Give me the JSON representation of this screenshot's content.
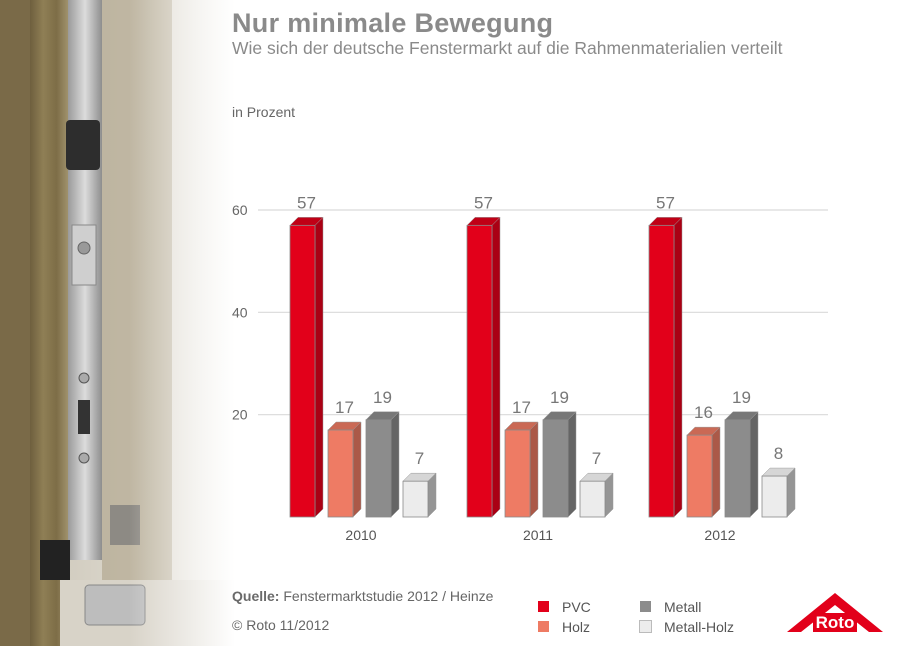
{
  "header": {
    "title": "Nur minimale Bewegung",
    "subtitle": "Wie sich der deutsche Fenstermarkt auf die Rahmenmaterialien verteilt"
  },
  "footer": {
    "source_label": "Quelle:",
    "source_text": "Fenstermarktstudie 2012 / Heinze",
    "copyright": "© Roto 11/2012"
  },
  "logo": {
    "text": "Roto",
    "color": "#e2001a"
  },
  "chart_data": {
    "type": "bar",
    "title": "Nur minimale Bewegung",
    "subtitle": "Wie sich der deutsche Fenstermarkt auf die Rahmenmaterialien verteilt",
    "unit_label": "in Prozent",
    "categories": [
      "2010",
      "2011",
      "2012"
    ],
    "series": [
      {
        "name": "PVC",
        "values": [
          57,
          57,
          57
        ],
        "color": "#e2001a"
      },
      {
        "name": "Holz",
        "values": [
          17,
          17,
          16
        ],
        "color": "#ee7b64"
      },
      {
        "name": "Metall",
        "values": [
          19,
          19,
          19
        ],
        "color": "#8c8c8c"
      },
      {
        "name": "Metall-Holz",
        "values": [
          7,
          7,
          8
        ],
        "color": "#ececec"
      }
    ],
    "ylim": [
      0,
      60
    ],
    "yticks": [
      20,
      40,
      60
    ],
    "grid": true,
    "legend": "bottom"
  }
}
